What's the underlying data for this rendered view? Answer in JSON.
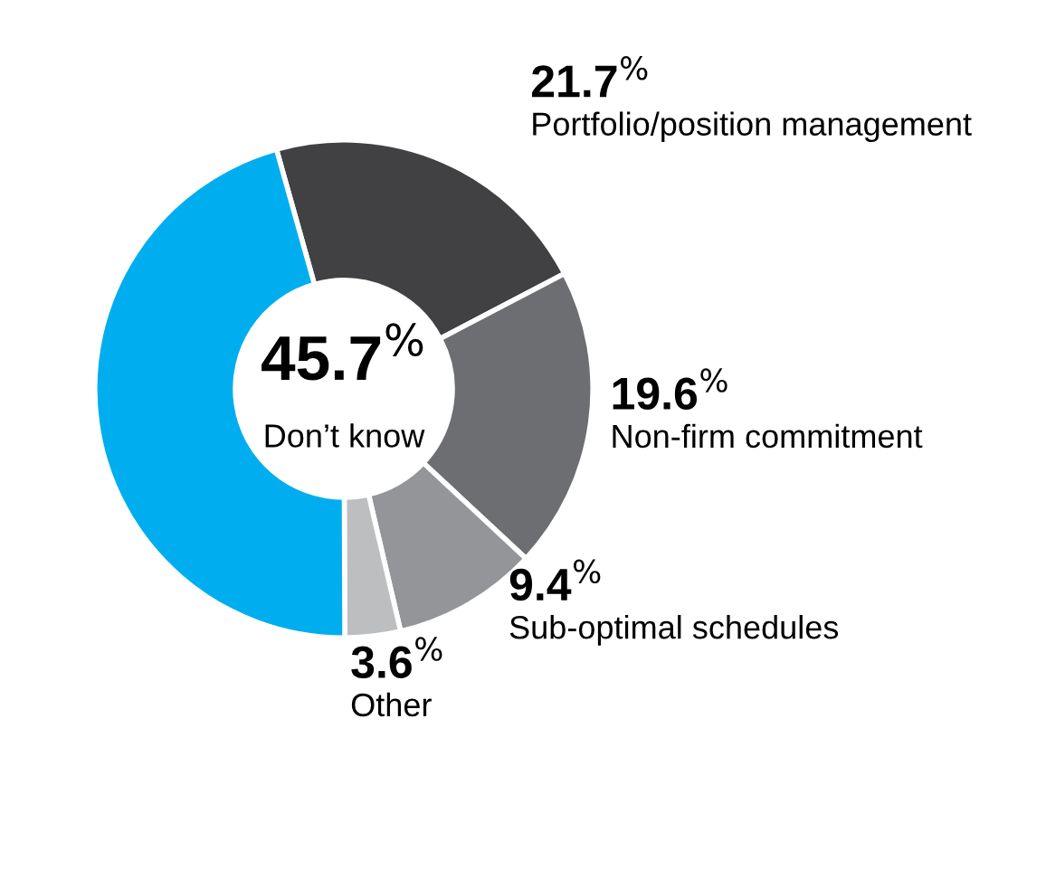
{
  "chart_data": {
    "type": "donut",
    "categories": [
      "Portfolio/position management",
      "Non-firm commitment",
      "Sub-optimal schedules",
      "Other",
      "Don’t know"
    ],
    "values": [
      21.7,
      19.6,
      9.4,
      3.6,
      45.7
    ],
    "colors": [
      "#414042",
      "#6d6e71",
      "#939598",
      "#bcbec0",
      "#00aeef"
    ],
    "value_labels": [
      "21.7$^{%}$",
      "19.6$^{%}$",
      "9.4$^{%}$",
      "3.6$^{%}$",
      "45.7$^{%}$"
    ]
  }
}
